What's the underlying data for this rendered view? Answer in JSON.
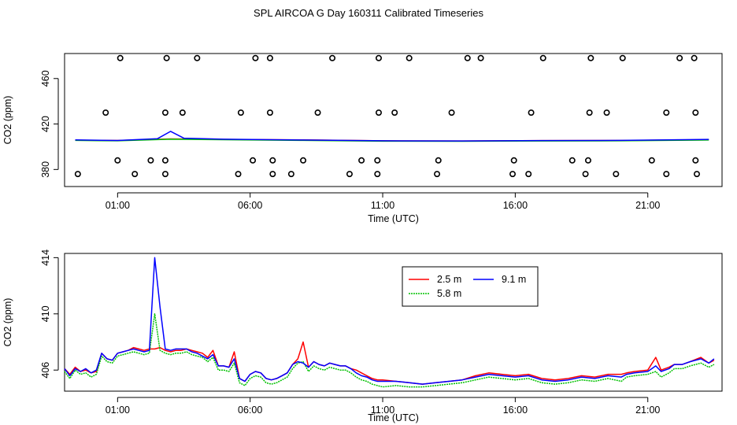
{
  "title": "SPL AIRCOA G  Day 160311  Calibrated Timeseries",
  "chart_data": [
    {
      "type": "scatter",
      "title": "SPL AIRCOA G  Day 160311  Calibrated Timeseries",
      "xlabel": "Time (UTC)",
      "ylabel": "CO2 (ppm)",
      "x_unit": "hours (UTC)",
      "xlim": [
        -1.0,
        23.8
      ],
      "ylim": [
        365,
        482
      ],
      "x_ticks": [
        1,
        6,
        11,
        16,
        21
      ],
      "x_tick_labels": [
        "01:00",
        "06:00",
        "11:00",
        "16:00",
        "21:00"
      ],
      "y_ticks": [
        380,
        420,
        460
      ],
      "y_tick_labels": [
        "380",
        "420",
        "460"
      ],
      "series": [
        {
          "color": "#ff0000",
          "x": [
            -0.6,
            1.0,
            3.0,
            5.0,
            8.0,
            11.0,
            14.0,
            17.0,
            20.0,
            23.3
          ],
          "y": [
            405.8,
            405.5,
            406.9,
            406.5,
            406.0,
            405.2,
            405.1,
            405.4,
            405.5,
            406.2
          ]
        },
        {
          "color": "#00c000",
          "x": [
            -0.6,
            1.0,
            3.0,
            5.0,
            8.0,
            11.0,
            14.0,
            17.0,
            20.0,
            23.3
          ],
          "y": [
            405.6,
            405.2,
            406.6,
            406.2,
            405.6,
            404.9,
            404.8,
            405.1,
            405.2,
            405.9
          ]
        },
        {
          "color": "#0000ff",
          "x": [
            -0.6,
            1.0,
            2.5,
            3.0,
            3.5,
            5.0,
            8.0,
            11.0,
            14.0,
            17.0,
            20.0,
            23.3
          ],
          "y": [
            406.0,
            405.5,
            407.0,
            413.5,
            407.5,
            406.6,
            405.9,
            405.2,
            405.1,
            405.4,
            405.6,
            406.5
          ]
        }
      ],
      "points": [
        {
          "x": 1.1,
          "y": 478
        },
        {
          "x": 2.85,
          "y": 478
        },
        {
          "x": 4.0,
          "y": 478
        },
        {
          "x": 6.2,
          "y": 478
        },
        {
          "x": 6.75,
          "y": 478
        },
        {
          "x": 9.1,
          "y": 478
        },
        {
          "x": 10.85,
          "y": 478
        },
        {
          "x": 12.0,
          "y": 478
        },
        {
          "x": 14.2,
          "y": 478
        },
        {
          "x": 14.7,
          "y": 478
        },
        {
          "x": 17.05,
          "y": 478
        },
        {
          "x": 18.85,
          "y": 478
        },
        {
          "x": 20.05,
          "y": 478
        },
        {
          "x": 22.2,
          "y": 478
        },
        {
          "x": 22.75,
          "y": 478
        },
        {
          "x": 0.55,
          "y": 430
        },
        {
          "x": 2.8,
          "y": 430
        },
        {
          "x": 3.45,
          "y": 430
        },
        {
          "x": 5.65,
          "y": 430
        },
        {
          "x": 6.75,
          "y": 430
        },
        {
          "x": 8.55,
          "y": 430
        },
        {
          "x": 10.85,
          "y": 430
        },
        {
          "x": 11.45,
          "y": 430
        },
        {
          "x": 13.6,
          "y": 430
        },
        {
          "x": 16.6,
          "y": 430
        },
        {
          "x": 18.8,
          "y": 430
        },
        {
          "x": 19.45,
          "y": 430
        },
        {
          "x": 21.7,
          "y": 430
        },
        {
          "x": 22.8,
          "y": 430
        },
        {
          "x": 1.0,
          "y": 388
        },
        {
          "x": 2.25,
          "y": 388
        },
        {
          "x": 2.8,
          "y": 388
        },
        {
          "x": 6.1,
          "y": 388
        },
        {
          "x": 6.85,
          "y": 388
        },
        {
          "x": 8.0,
          "y": 388
        },
        {
          "x": 10.2,
          "y": 388
        },
        {
          "x": 10.8,
          "y": 388
        },
        {
          "x": 13.1,
          "y": 388
        },
        {
          "x": 15.95,
          "y": 388
        },
        {
          "x": 18.15,
          "y": 388
        },
        {
          "x": 18.75,
          "y": 388
        },
        {
          "x": 21.15,
          "y": 388
        },
        {
          "x": 22.8,
          "y": 388
        },
        {
          "x": -0.5,
          "y": 376
        },
        {
          "x": 1.65,
          "y": 376
        },
        {
          "x": 2.8,
          "y": 376
        },
        {
          "x": 5.55,
          "y": 376
        },
        {
          "x": 6.85,
          "y": 376
        },
        {
          "x": 7.55,
          "y": 376
        },
        {
          "x": 9.75,
          "y": 376
        },
        {
          "x": 10.8,
          "y": 376
        },
        {
          "x": 13.05,
          "y": 376
        },
        {
          "x": 15.9,
          "y": 376
        },
        {
          "x": 16.5,
          "y": 376
        },
        {
          "x": 18.65,
          "y": 376
        },
        {
          "x": 19.8,
          "y": 376
        },
        {
          "x": 21.7,
          "y": 376
        },
        {
          "x": 22.85,
          "y": 376
        }
      ]
    },
    {
      "type": "line",
      "xlabel": "Time (UTC)",
      "ylabel": "CO2 (ppm)",
      "x_unit": "hours (UTC)",
      "xlim": [
        -1.0,
        23.8
      ],
      "ylim": [
        404.5,
        414.3
      ],
      "x_ticks": [
        1,
        6,
        11,
        16,
        21
      ],
      "x_tick_labels": [
        "01:00",
        "06:00",
        "11:00",
        "16:00",
        "21:00"
      ],
      "y_ticks": [
        406,
        410,
        414
      ],
      "y_tick_labels": [
        "406",
        "410",
        "414"
      ],
      "legend": {
        "placement": "top-center"
      },
      "series": [
        {
          "name": "2.5 m",
          "color": "#ff0000",
          "x": [
            -1.0,
            -0.8,
            -0.6,
            -0.4,
            -0.2,
            0.0,
            0.2,
            0.4,
            0.6,
            0.8,
            1.0,
            1.2,
            1.4,
            1.6,
            1.8,
            2.0,
            2.2,
            2.4,
            2.6,
            2.8,
            3.0,
            3.2,
            3.4,
            3.6,
            3.8,
            4.0,
            4.2,
            4.4,
            4.6,
            4.8,
            5.0,
            5.2,
            5.4,
            5.6,
            5.8,
            6.0,
            6.2,
            6.4,
            6.6,
            6.8,
            7.0,
            7.2,
            7.4,
            7.6,
            7.8,
            8.0,
            8.2,
            8.4,
            8.6,
            8.8,
            9.0,
            9.2,
            9.4,
            9.6,
            9.8,
            10.0,
            10.2,
            10.4,
            10.6,
            10.8,
            11.0,
            11.5,
            12.0,
            12.5,
            13.0,
            13.5,
            14.0,
            14.5,
            15.0,
            15.5,
            16.0,
            16.5,
            17.0,
            17.5,
            18.0,
            18.5,
            19.0,
            19.5,
            20.0,
            20.2,
            20.5,
            21.0,
            21.3,
            21.5,
            21.8,
            22.0,
            22.3,
            22.6,
            23.0,
            23.3,
            23.5
          ],
          "y": [
            406.1,
            405.7,
            406.2,
            405.9,
            406.0,
            405.8,
            405.9,
            407.2,
            406.8,
            406.7,
            407.2,
            407.3,
            407.4,
            407.6,
            407.5,
            407.4,
            407.5,
            407.5,
            407.6,
            407.4,
            407.3,
            407.4,
            407.4,
            407.5,
            407.4,
            407.3,
            407.2,
            406.9,
            407.4,
            406.3,
            406.3,
            406.2,
            407.3,
            405.4,
            405.2,
            405.7,
            405.9,
            405.8,
            405.4,
            405.3,
            405.4,
            405.6,
            405.8,
            406.4,
            406.8,
            408.0,
            406.2,
            406.6,
            406.4,
            406.3,
            406.5,
            406.4,
            406.3,
            406.3,
            406.1,
            406.0,
            405.8,
            405.6,
            405.4,
            405.3,
            405.3,
            405.2,
            405.1,
            405.0,
            405.1,
            405.2,
            405.3,
            405.6,
            405.8,
            405.7,
            405.6,
            405.7,
            405.4,
            405.3,
            405.4,
            405.6,
            405.5,
            405.7,
            405.7,
            405.8,
            405.9,
            406.0,
            406.9,
            406.0,
            406.2,
            406.4,
            406.4,
            406.6,
            406.9,
            406.5,
            406.7
          ]
        },
        {
          "name": "5.8 m",
          "color": "#00c000",
          "x": [
            -1.0,
            -0.8,
            -0.6,
            -0.4,
            -0.2,
            0.0,
            0.2,
            0.4,
            0.6,
            0.8,
            1.0,
            1.2,
            1.4,
            1.6,
            1.8,
            2.0,
            2.2,
            2.4,
            2.6,
            2.8,
            3.0,
            3.2,
            3.4,
            3.6,
            3.8,
            4.0,
            4.2,
            4.4,
            4.6,
            4.8,
            5.0,
            5.2,
            5.4,
            5.6,
            5.8,
            6.0,
            6.2,
            6.4,
            6.6,
            6.8,
            7.0,
            7.2,
            7.4,
            7.6,
            7.8,
            8.0,
            8.2,
            8.4,
            8.6,
            8.8,
            9.0,
            9.2,
            9.4,
            9.6,
            9.8,
            10.0,
            10.2,
            10.4,
            10.6,
            10.8,
            11.0,
            11.5,
            12.0,
            12.5,
            13.0,
            13.5,
            14.0,
            14.5,
            15.0,
            15.5,
            16.0,
            16.5,
            17.0,
            17.5,
            18.0,
            18.5,
            19.0,
            19.5,
            20.0,
            20.2,
            20.5,
            21.0,
            21.3,
            21.5,
            21.8,
            22.0,
            22.3,
            22.6,
            23.0,
            23.3,
            23.5
          ],
          "y": [
            405.9,
            405.4,
            406.0,
            405.7,
            405.8,
            405.5,
            405.7,
            407.0,
            406.6,
            406.5,
            407.0,
            407.1,
            407.2,
            407.3,
            407.2,
            407.1,
            407.2,
            410.0,
            407.4,
            407.2,
            407.1,
            407.2,
            407.2,
            407.3,
            407.1,
            407.0,
            406.9,
            406.6,
            406.9,
            406.0,
            406.0,
            405.9,
            406.5,
            405.1,
            404.9,
            405.4,
            405.6,
            405.5,
            405.1,
            405.0,
            405.1,
            405.3,
            405.5,
            406.1,
            406.5,
            406.6,
            405.9,
            406.3,
            406.1,
            406.0,
            406.2,
            406.1,
            406.0,
            406.0,
            405.8,
            405.5,
            405.3,
            405.2,
            405.0,
            404.9,
            404.8,
            404.9,
            404.8,
            404.8,
            404.9,
            405.0,
            405.1,
            405.3,
            405.5,
            405.4,
            405.3,
            405.4,
            405.1,
            405.0,
            405.1,
            405.3,
            405.2,
            405.4,
            405.2,
            405.5,
            405.6,
            405.7,
            405.9,
            405.5,
            405.8,
            406.1,
            406.1,
            406.3,
            406.5,
            406.2,
            406.4
          ]
        },
        {
          "name": "9.1 m",
          "color": "#0000ff",
          "x": [
            -1.0,
            -0.8,
            -0.6,
            -0.4,
            -0.2,
            0.0,
            0.2,
            0.4,
            0.6,
            0.8,
            1.0,
            1.2,
            1.4,
            1.6,
            1.8,
            2.0,
            2.2,
            2.4,
            2.6,
            2.8,
            3.0,
            3.2,
            3.4,
            3.6,
            3.8,
            4.0,
            4.2,
            4.4,
            4.6,
            4.8,
            5.0,
            5.2,
            5.4,
            5.6,
            5.8,
            6.0,
            6.2,
            6.4,
            6.6,
            6.8,
            7.0,
            7.2,
            7.4,
            7.6,
            7.8,
            8.0,
            8.2,
            8.4,
            8.6,
            8.8,
            9.0,
            9.2,
            9.4,
            9.6,
            9.8,
            10.0,
            10.2,
            10.4,
            10.6,
            10.8,
            11.0,
            11.5,
            12.0,
            12.5,
            13.0,
            13.5,
            14.0,
            14.5,
            15.0,
            15.5,
            16.0,
            16.5,
            17.0,
            17.5,
            18.0,
            18.5,
            19.0,
            19.5,
            20.0,
            20.2,
            20.5,
            21.0,
            21.3,
            21.5,
            21.8,
            22.0,
            22.3,
            22.6,
            23.0,
            23.3,
            23.5
          ],
          "y": [
            406.1,
            405.6,
            406.1,
            405.9,
            406.1,
            405.8,
            406.0,
            407.2,
            406.8,
            406.7,
            407.2,
            407.3,
            407.4,
            407.5,
            407.4,
            407.3,
            407.4,
            414.0,
            410.5,
            407.5,
            407.4,
            407.5,
            407.5,
            407.5,
            407.3,
            407.2,
            407.0,
            406.8,
            407.1,
            406.3,
            406.3,
            406.2,
            406.8,
            405.4,
            405.2,
            405.7,
            405.9,
            405.8,
            405.4,
            405.3,
            405.4,
            405.6,
            405.8,
            406.4,
            406.6,
            406.5,
            406.2,
            406.6,
            406.4,
            406.3,
            406.5,
            406.4,
            406.3,
            406.3,
            406.1,
            405.8,
            405.6,
            405.5,
            405.3,
            405.2,
            405.2,
            405.2,
            405.1,
            405.0,
            405.1,
            405.2,
            405.3,
            405.5,
            405.7,
            405.6,
            405.5,
            405.6,
            405.3,
            405.2,
            405.3,
            405.5,
            405.4,
            405.6,
            405.5,
            405.7,
            405.8,
            405.9,
            406.3,
            405.9,
            406.1,
            406.4,
            406.4,
            406.6,
            406.8,
            406.5,
            406.8
          ]
        }
      ]
    }
  ]
}
